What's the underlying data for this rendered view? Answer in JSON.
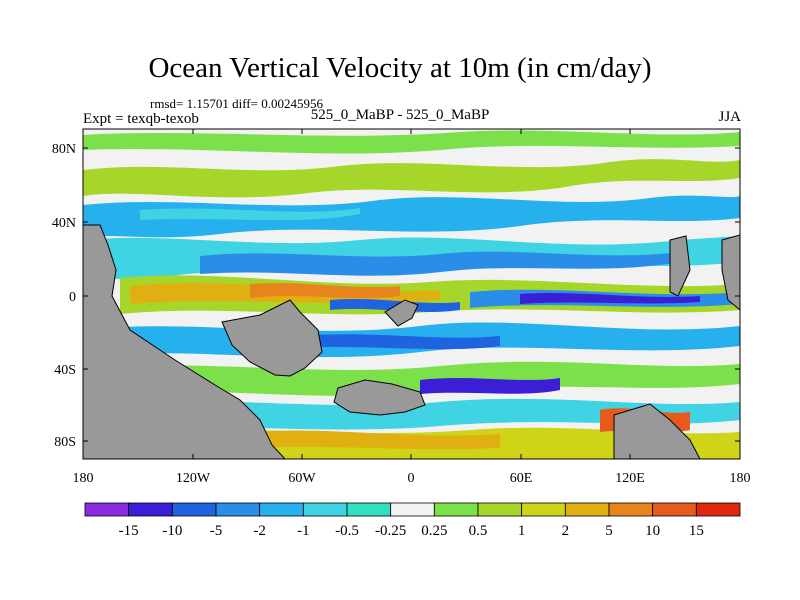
{
  "header": {
    "title": "Ocean Vertical Velocity at 10m (in cm/day)",
    "stats": "rmsd= 1.15701 diff= 0.00245956",
    "experiment": "Expt = texqb-texob",
    "case": "525_0_MaBP - 525_0_MaBP",
    "season": "JJA"
  },
  "axes": {
    "lat_ticks": [
      "80N",
      "40N",
      "0",
      "40S",
      "80S"
    ],
    "lon_ticks": [
      "180",
      "120W",
      "60W",
      "0",
      "60E",
      "120E",
      "180"
    ]
  },
  "colorbar": {
    "labels": [
      "-15",
      "-10",
      "-5",
      "-2",
      "-1",
      "-0.5",
      "-0.25",
      "0.25",
      "0.5",
      "1",
      "2",
      "5",
      "10",
      "15"
    ],
    "colors": [
      "#8a2be2",
      "#3b1fd6",
      "#1f63e0",
      "#2a8ee8",
      "#27b0ee",
      "#3fd3e3",
      "#30e0c0",
      "#f2f2f2",
      "#7be04a",
      "#a7d62a",
      "#cfd418",
      "#e0b012",
      "#e8841c",
      "#e85a1c",
      "#e02810"
    ]
  },
  "colors": {
    "land": "#999999",
    "ocean_neutral": "#f2f2f2"
  }
}
